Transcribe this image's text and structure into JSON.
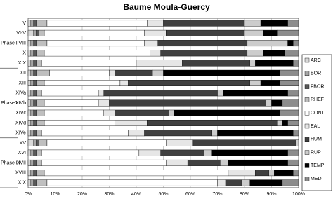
{
  "chart_data": {
    "type": "stacked-bar-horizontal",
    "title": "Baume Moula-Guercy",
    "categories": [
      "IV",
      "VI-V",
      "VIII",
      "IX",
      "XIX",
      "XII",
      "XIII",
      "XIVa",
      "XIVb",
      "XIVc",
      "XIVd",
      "XIVe",
      "XV",
      "XVI",
      "XVII",
      "XVIII",
      "XIX"
    ],
    "groups": [
      {
        "label": "Phase I",
        "start": 0,
        "end": 4
      },
      {
        "label": "Phase II",
        "start": 5,
        "end": 11
      },
      {
        "label": "Phase III",
        "start": 12,
        "end": 16
      }
    ],
    "series": [
      {
        "name": "ARC",
        "color": "#d9d9d9",
        "values": [
          1,
          2,
          1,
          1,
          1,
          1,
          1,
          1,
          1,
          1,
          1,
          1,
          2,
          1,
          1,
          1,
          1
        ]
      },
      {
        "name": "BOR",
        "color": "#a6a6a6",
        "values": [
          1,
          1,
          1,
          1,
          1,
          1,
          1,
          1,
          1,
          1,
          1,
          1,
          1,
          1,
          1,
          1,
          1
        ]
      },
      {
        "name": "FBOR",
        "color": "#595959",
        "values": [
          1,
          1,
          1,
          1,
          1,
          1,
          1,
          1,
          1,
          1,
          1,
          1,
          1,
          1,
          1,
          1,
          1
        ]
      },
      {
        "name": "RHEF",
        "color": "#bfbfbf",
        "values": [
          4,
          2,
          4,
          3,
          2,
          5,
          3,
          2,
          3,
          3,
          3,
          2,
          3,
          2,
          2,
          3,
          4
        ]
      },
      {
        "name": "CONT",
        "color": "#ffffff",
        "values": [
          37,
          37,
          36,
          39,
          35,
          22,
          28,
          21,
          20,
          22,
          26,
          32,
          44,
          36,
          46,
          68,
          63
        ]
      },
      {
        "name": "EAU",
        "color": "#e6e6e6",
        "values": [
          6,
          8,
          5,
          4,
          17,
          2,
          3,
          2,
          4,
          4,
          12,
          6,
          10,
          8,
          8,
          10,
          3
        ]
      },
      {
        "name": "HUM",
        "color": "#404040",
        "values": [
          30,
          29,
          33,
          32,
          25,
          14,
          45,
          42,
          58,
          20,
          48,
          25,
          38,
          16,
          12,
          5,
          6
        ]
      },
      {
        "name": "RUP",
        "color": "#cccccc",
        "values": [
          6,
          7,
          15,
          6,
          2,
          4,
          4,
          2,
          2,
          2,
          2,
          2,
          1,
          3,
          3,
          2,
          3
        ]
      },
      {
        "name": "TEMP",
        "color": "#000000",
        "values": [
          10,
          5,
          2,
          8,
          14,
          43,
          7,
          24,
          4,
          39,
          2,
          28,
          0,
          28,
          22,
          7,
          12
        ]
      },
      {
        "name": "MED",
        "color": "#8c8c8c",
        "values": [
          4,
          8,
          2,
          5,
          2,
          7,
          7,
          4,
          6,
          7,
          4,
          2,
          0,
          4,
          4,
          2,
          6
        ]
      }
    ],
    "xlim": [
      0,
      100
    ],
    "xticks": [
      {
        "value": 0,
        "label": "0%"
      },
      {
        "value": 10,
        "label": "10%"
      },
      {
        "value": 20,
        "label": "20%"
      },
      {
        "value": 30,
        "label": "30%"
      },
      {
        "value": 40,
        "label": "40%"
      },
      {
        "value": 50,
        "label": "50%"
      },
      {
        "value": 60,
        "label": "60%"
      },
      {
        "value": 70,
        "label": "70%"
      },
      {
        "value": 80,
        "label": "80%"
      },
      {
        "value": 90,
        "label": "90%"
      },
      {
        "value": 100,
        "label": "100%"
      }
    ],
    "grid": true
  }
}
